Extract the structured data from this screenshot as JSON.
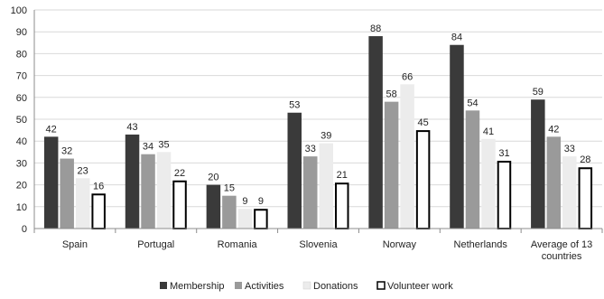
{
  "chart_data": {
    "type": "bar",
    "title": "",
    "xlabel": "",
    "ylabel": "",
    "ylim": [
      0,
      100
    ],
    "yticks": [
      0,
      10,
      20,
      30,
      40,
      50,
      60,
      70,
      80,
      90,
      100
    ],
    "grid": true,
    "legend_position": "bottom",
    "categories": [
      [
        "Spain"
      ],
      [
        "Portugal"
      ],
      [
        "Romania"
      ],
      [
        "Slovenia"
      ],
      [
        "Norway"
      ],
      [
        "Netherlands"
      ],
      [
        "Average of 13",
        "countries"
      ]
    ],
    "series": [
      {
        "name": "Membership",
        "values": [
          42,
          43,
          20,
          53,
          88,
          84,
          59
        ],
        "color": "#3a3a3a"
      },
      {
        "name": "Activities",
        "values": [
          32,
          34,
          15,
          33,
          58,
          54,
          42
        ],
        "color": "#9a9a9a"
      },
      {
        "name": "Donations",
        "values": [
          23,
          35,
          9,
          39,
          66,
          41,
          33
        ],
        "color": "#ececec"
      },
      {
        "name": "Volunteer work",
        "values": [
          16,
          22,
          9,
          21,
          45,
          31,
          28
        ],
        "color": "#ffffff",
        "outline": "#000000"
      }
    ]
  }
}
